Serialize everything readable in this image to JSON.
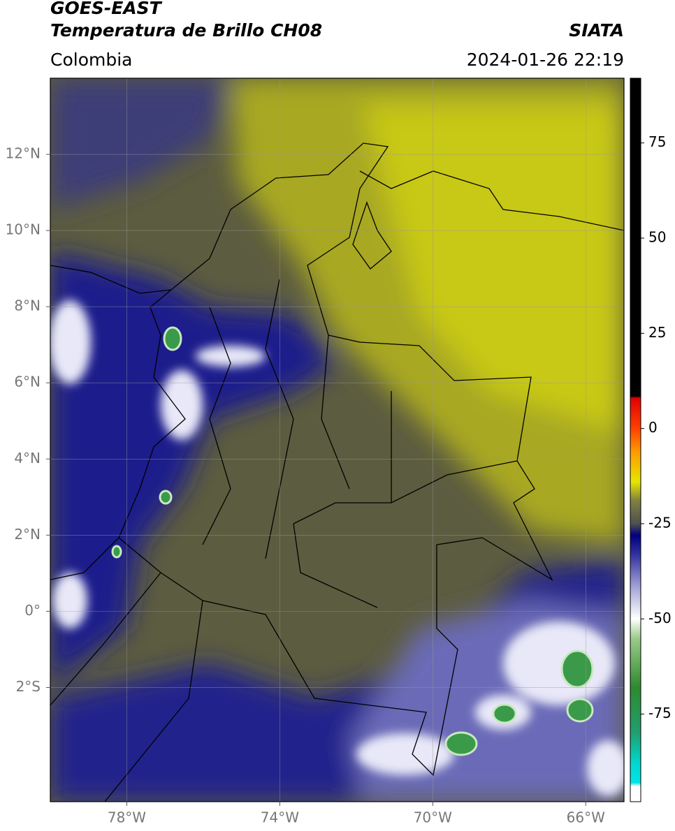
{
  "header": {
    "title": "GOES-EAST",
    "subtitle": "Temperatura de Brillo CH08",
    "source": "SIATA",
    "region": "Colombia",
    "datetime": "2024-01-26 22:19"
  },
  "map": {
    "xlim": [
      -80,
      -65
    ],
    "ylim": [
      -5,
      14
    ],
    "xticks": [
      {
        "value": -78,
        "label": "78°W"
      },
      {
        "value": -74,
        "label": "74°W"
      },
      {
        "value": -70,
        "label": "70°W"
      },
      {
        "value": -66,
        "label": "66°W"
      }
    ],
    "yticks": [
      {
        "value": 12,
        "label": "12°N"
      },
      {
        "value": 10,
        "label": "10°N"
      },
      {
        "value": 8,
        "label": "8°N"
      },
      {
        "value": 6,
        "label": "6°N"
      },
      {
        "value": 4,
        "label": "4°N"
      },
      {
        "value": 2,
        "label": "2°N"
      },
      {
        "value": 0,
        "label": "0°"
      },
      {
        "value": -2,
        "label": "2°S"
      }
    ],
    "grid": true
  },
  "colorbar": {
    "clim": [
      -98,
      92
    ],
    "ticks": [
      75,
      50,
      25,
      0,
      -25,
      -50,
      -75
    ],
    "colormap": [
      {
        "value": -98,
        "color": "#ffffff"
      },
      {
        "value": -94,
        "color": "#ffffff"
      },
      {
        "value": -93,
        "color": "#00e5e5"
      },
      {
        "value": -88,
        "color": "#00d8d0"
      },
      {
        "value": -80,
        "color": "#20a070"
      },
      {
        "value": -68,
        "color": "#2e8a2e"
      },
      {
        "value": -55,
        "color": "#9ccc8a"
      },
      {
        "value": -50,
        "color": "#ffffff"
      },
      {
        "value": -42,
        "color": "#a8a8d8"
      },
      {
        "value": -33,
        "color": "#3030a0"
      },
      {
        "value": -28,
        "color": "#000080"
      },
      {
        "value": -25,
        "color": "#505050"
      },
      {
        "value": -19,
        "color": "#808040"
      },
      {
        "value": -14,
        "color": "#e6e600"
      },
      {
        "value": -6,
        "color": "#ff9900"
      },
      {
        "value": 0,
        "color": "#ff4000"
      },
      {
        "value": 8,
        "color": "#e00000"
      },
      {
        "value": 8.5,
        "color": "#000000"
      },
      {
        "value": 92,
        "color": "#000000"
      }
    ]
  }
}
